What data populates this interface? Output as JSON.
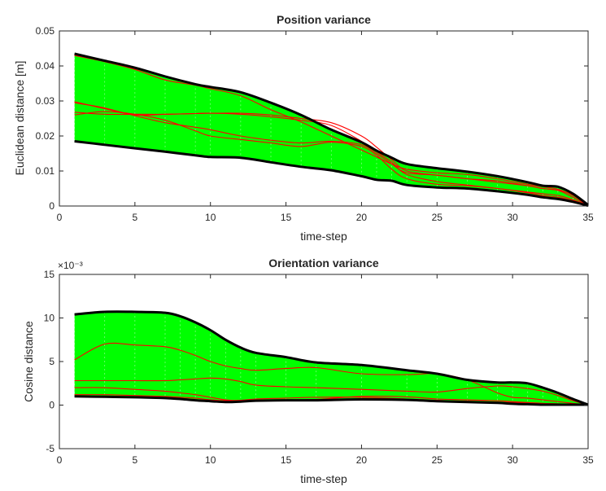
{
  "chart_data": [
    {
      "type": "area",
      "title": "Position variance",
      "xlabel": "time-step",
      "ylabel": "Euclidean distance [m]",
      "xlim": [
        0,
        35
      ],
      "ylim": [
        0,
        0.05
      ],
      "xticks": [
        0,
        5,
        10,
        15,
        20,
        25,
        30,
        35
      ],
      "yticks": [
        0,
        0.01,
        0.02,
        0.03,
        0.04,
        0.05
      ],
      "ytick_labels": [
        "0",
        "0.01",
        "0.02",
        "0.03",
        "0.04",
        "0.05"
      ],
      "exponent_label": "",
      "grid": false,
      "band_color": "#00ff00",
      "edge_color": "#000000",
      "line_color": "#ff0000",
      "x": [
        1,
        3,
        5,
        7,
        9,
        10,
        12,
        14,
        16,
        18,
        20,
        21,
        22,
        23,
        25,
        27,
        29,
        31,
        32,
        33,
        34,
        35
      ],
      "upper": [
        0.0435,
        0.0415,
        0.0395,
        0.037,
        0.0348,
        0.034,
        0.0325,
        0.0295,
        0.026,
        0.0218,
        0.0182,
        0.0158,
        0.0138,
        0.012,
        0.0108,
        0.0098,
        0.0085,
        0.0068,
        0.0058,
        0.0055,
        0.0035,
        0.0003
      ],
      "lower": [
        0.0185,
        0.0175,
        0.0165,
        0.0155,
        0.0145,
        0.014,
        0.0138,
        0.0125,
        0.0112,
        0.0102,
        0.0085,
        0.0075,
        0.0072,
        0.006,
        0.0053,
        0.005,
        0.0042,
        0.0032,
        0.0025,
        0.002,
        0.0012,
        0.0001
      ],
      "series": [
        {
          "values": [
            0.043,
            0.0412,
            0.039,
            0.036,
            0.0345,
            0.0335,
            0.0315,
            0.0275,
            0.024,
            0.02,
            0.016,
            0.014,
            0.012,
            0.0105,
            0.0095,
            0.009,
            0.0078,
            0.0062,
            0.0055,
            0.0048,
            0.003,
            0.0003
          ]
        },
        {
          "values": [
            0.0295,
            0.028,
            0.0258,
            0.0238,
            0.0225,
            0.0218,
            0.02,
            0.0188,
            0.018,
            0.0185,
            0.0175,
            0.015,
            0.012,
            0.0095,
            0.0088,
            0.0078,
            0.0072,
            0.0058,
            0.005,
            0.0045,
            0.0025,
            0.0002
          ]
        },
        {
          "values": [
            0.0268,
            0.0262,
            0.0262,
            0.0262,
            0.0264,
            0.0265,
            0.0265,
            0.026,
            0.025,
            0.0238,
            0.02,
            0.0168,
            0.0132,
            0.01,
            0.0088,
            0.0078,
            0.0068,
            0.0058,
            0.005,
            0.0045,
            0.0032,
            0.0002
          ]
        },
        {
          "values": [
            0.026,
            0.027,
            0.0262,
            0.0245,
            0.0215,
            0.02,
            0.019,
            0.018,
            0.017,
            0.0182,
            0.017,
            0.0145,
            0.0105,
            0.0078,
            0.0062,
            0.0058,
            0.005,
            0.004,
            0.0035,
            0.003,
            0.0018,
            0.0002
          ]
        },
        {
          "values": [
            0.0298,
            0.0278,
            0.026,
            0.0262,
            0.0264,
            0.0265,
            0.0262,
            0.0255,
            0.0245,
            0.023,
            0.0185,
            0.0155,
            0.0125,
            0.009,
            0.007,
            0.006,
            0.005,
            0.0038,
            0.003,
            0.0025,
            0.0015,
            0.0001
          ]
        }
      ]
    },
    {
      "type": "area",
      "title": "Orientation variance",
      "xlabel": "time-step",
      "ylabel": "Cosine distance",
      "xlim": [
        0,
        35
      ],
      "ylim": [
        -5,
        15
      ],
      "xticks": [
        0,
        5,
        10,
        15,
        20,
        25,
        30,
        35
      ],
      "yticks": [
        -5,
        0,
        5,
        10,
        15
      ],
      "ytick_labels": [
        "-5",
        "0",
        "5",
        "10",
        "15"
      ],
      "exponent_label": "×10⁻³",
      "grid": false,
      "band_color": "#00ff00",
      "edge_color": "#000000",
      "line_color": "#ff0000",
      "x": [
        1,
        3,
        5,
        7,
        8,
        9,
        10,
        11,
        12,
        13,
        15,
        17,
        20,
        23,
        25,
        27,
        29,
        30,
        31,
        32,
        33,
        34,
        35
      ],
      "upper": [
        10.4,
        10.7,
        10.7,
        10.6,
        10.2,
        9.5,
        8.6,
        7.5,
        6.6,
        6.0,
        5.5,
        4.9,
        4.6,
        4.0,
        3.6,
        2.9,
        2.6,
        2.6,
        2.5,
        2.0,
        1.4,
        0.7,
        0.05
      ],
      "lower": [
        1.0,
        0.95,
        0.9,
        0.8,
        0.7,
        0.55,
        0.45,
        0.35,
        0.4,
        0.5,
        0.55,
        0.55,
        0.65,
        0.6,
        0.45,
        0.35,
        0.25,
        0.15,
        0.1,
        0.05,
        0.05,
        0.05,
        0.05
      ],
      "series": [
        {
          "values": [
            5.2,
            7.0,
            6.9,
            6.7,
            6.3,
            5.7,
            5.0,
            4.5,
            4.2,
            4.0,
            4.2,
            4.3,
            3.6,
            3.5,
            3.6,
            2.9,
            1.4,
            0.9,
            0.8,
            0.6,
            0.4,
            0.2,
            0.02
          ]
        },
        {
          "values": [
            2.8,
            2.8,
            2.8,
            2.8,
            2.9,
            3.0,
            3.1,
            3.0,
            2.7,
            2.3,
            2.1,
            2.0,
            1.8,
            1.6,
            1.5,
            1.9,
            2.2,
            2.1,
            1.9,
            1.6,
            1.1,
            0.5,
            0.02
          ]
        },
        {
          "values": [
            2.0,
            2.0,
            1.8,
            1.6,
            1.4,
            1.2,
            0.9,
            0.6,
            0.5,
            0.55,
            0.6,
            0.65,
            1.0,
            0.95,
            0.7,
            0.6,
            0.5,
            0.4,
            0.3,
            0.2,
            0.15,
            0.1,
            0.02
          ]
        },
        {
          "values": [
            1.2,
            1.2,
            1.1,
            1.0,
            0.9,
            0.8,
            0.6,
            0.5,
            0.55,
            0.7,
            0.8,
            0.9,
            0.9,
            0.7,
            0.55,
            0.45,
            0.35,
            0.3,
            0.25,
            0.2,
            0.15,
            0.1,
            0.02
          ]
        }
      ]
    }
  ]
}
